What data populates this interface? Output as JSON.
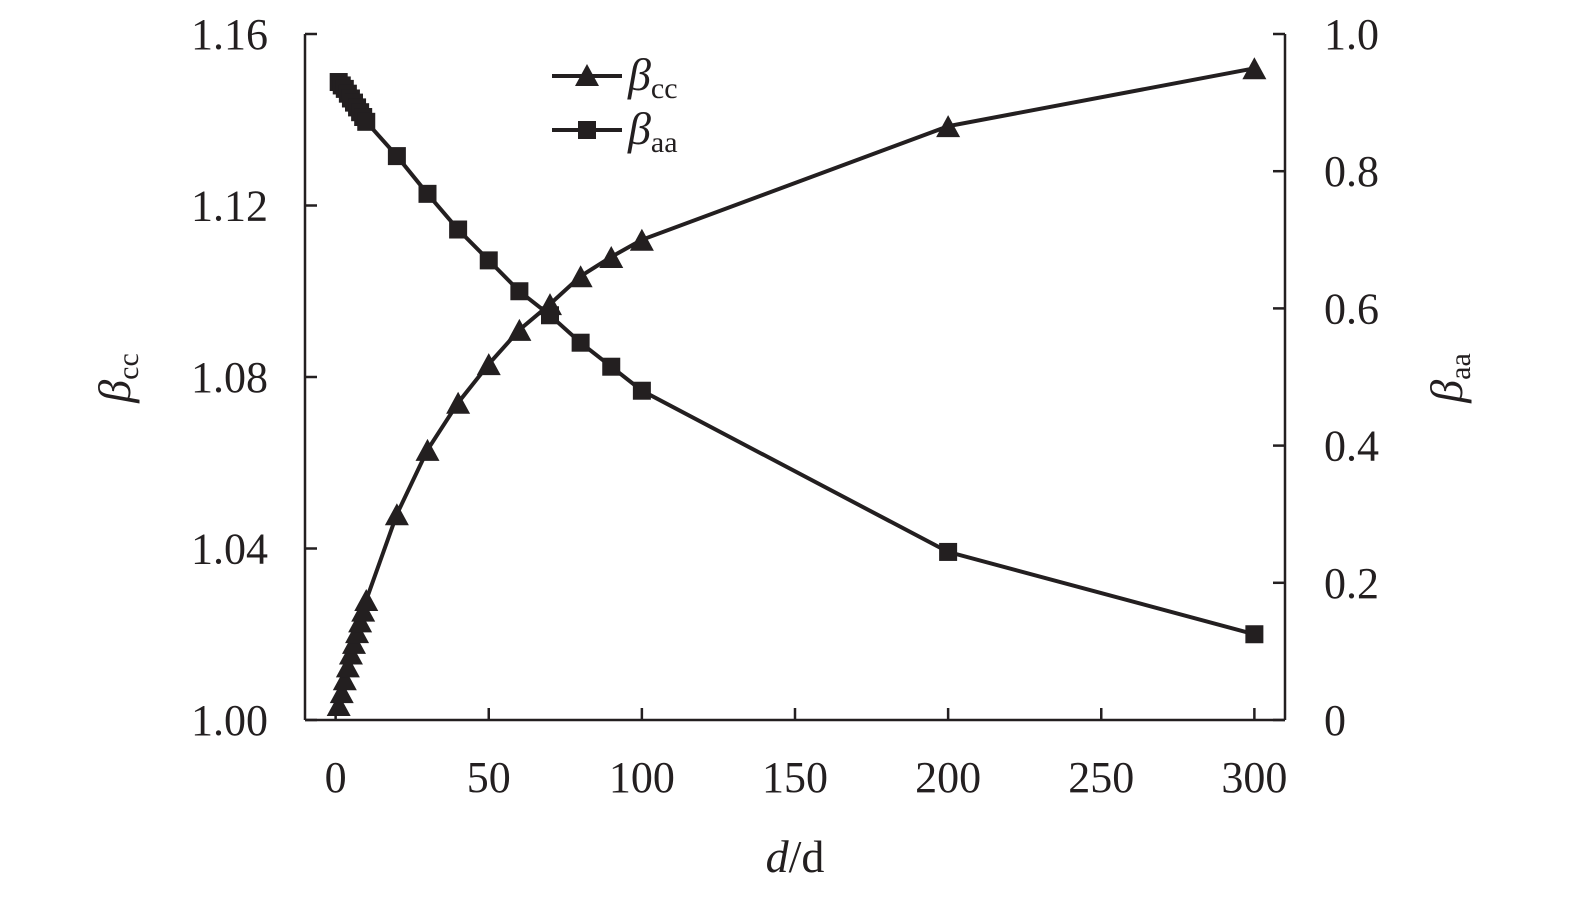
{
  "chart_data": {
    "type": "line",
    "x": [
      1,
      2,
      3,
      4,
      5,
      6,
      7,
      8,
      9,
      10,
      20,
      30,
      40,
      50,
      60,
      70,
      80,
      90,
      100,
      200,
      300
    ],
    "x_ticks": [
      "0",
      "50",
      "100",
      "150",
      "200",
      "250",
      "300"
    ],
    "xlim": [
      -10,
      310
    ],
    "xlabel": {
      "italic": "d",
      "rest": "/d"
    },
    "left_axis": {
      "ylim": [
        1.0,
        1.16
      ],
      "ticks": [
        "1.00",
        "1.04",
        "1.08",
        "1.12",
        "1.16"
      ],
      "ylabel": {
        "symbol": "β",
        "sub": "cc"
      }
    },
    "right_axis": {
      "ylim": [
        0,
        1.0
      ],
      "ticks": [
        "0",
        "0.2",
        "0.4",
        "0.6",
        "0.8",
        "1.0"
      ],
      "ylabel": {
        "symbol": "β",
        "sub": "aa"
      }
    },
    "series": [
      {
        "name": {
          "symbol": "β",
          "sub": "cc"
        },
        "axis": "left",
        "marker": "triangle",
        "values": [
          1.0035,
          1.0065,
          1.0095,
          1.0125,
          1.0155,
          1.018,
          1.0205,
          1.023,
          1.0255,
          1.028,
          1.048,
          1.063,
          1.074,
          1.083,
          1.091,
          1.097,
          1.1035,
          1.108,
          1.112,
          1.1385,
          1.152
        ]
      },
      {
        "name": {
          "symbol": "β",
          "sub": "aa"
        },
        "axis": "right",
        "marker": "square",
        "values": [
          0.93,
          0.925,
          0.92,
          0.913,
          0.906,
          0.9,
          0.893,
          0.886,
          0.879,
          0.872,
          0.822,
          0.767,
          0.715,
          0.67,
          0.625,
          0.59,
          0.55,
          0.515,
          0.48,
          0.245,
          0.125
        ]
      }
    ],
    "grid": false,
    "legend": "top-center"
  }
}
